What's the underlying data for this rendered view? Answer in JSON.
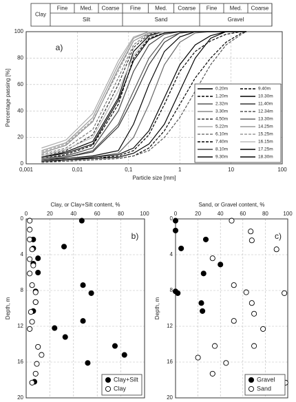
{
  "header": {
    "clay": "Clay",
    "groups": [
      {
        "name": "Silt",
        "parts": [
          "Fine",
          "Med.",
          "Coarse"
        ]
      },
      {
        "name": "Sand",
        "parts": [
          "Fine",
          "Med.",
          "Coarse"
        ]
      },
      {
        "name": "Gravel",
        "parts": [
          "Fine",
          "Med.",
          "Coarse"
        ]
      }
    ]
  },
  "chart_data": [
    {
      "type": "line",
      "panel_label": "a)",
      "xlabel": "Particle size [mm]",
      "ylabel": "Percentage passing [%]",
      "log_x": true,
      "grid": true,
      "x_axis_position": "bottom",
      "legend": "lower-right",
      "xlim": [
        0.001,
        100
      ],
      "xticks": [
        {
          "value": 0.001,
          "label": "0,001"
        },
        {
          "value": 0.01,
          "label": "0,01"
        },
        {
          "value": 0.1,
          "label": "0,1"
        },
        1,
        10,
        100
      ],
      "ylim": [
        0,
        100
      ],
      "yticks": [
        0,
        20,
        40,
        60,
        80,
        100
      ],
      "x": [
        0.002,
        0.006,
        0.02,
        0.063,
        0.125,
        0.25,
        0.5,
        1,
        2,
        4,
        8,
        16,
        20
      ],
      "series": [
        {
          "name": "0.20m",
          "color": "#000000",
          "style": "solid",
          "values": [
            5,
            9,
            17,
            50,
            85,
            97,
            100,
            100,
            100,
            100,
            100,
            100,
            100
          ]
        },
        {
          "name": "1.20m",
          "color": "#000000",
          "style": "dashed",
          "values": [
            4,
            7,
            14,
            45,
            80,
            95,
            99,
            100,
            100,
            100,
            100,
            100,
            100
          ]
        },
        {
          "name": "2.32m",
          "color": "#555555",
          "style": "solid",
          "values": [
            3,
            5,
            10,
            30,
            55,
            80,
            95,
            99,
            100,
            100,
            100,
            100,
            100
          ]
        },
        {
          "name": "3.30m",
          "color": "#888888",
          "style": "solid",
          "values": [
            8,
            14,
            32,
            72,
            93,
            99,
            100,
            100,
            100,
            100,
            100,
            100,
            100
          ]
        },
        {
          "name": "4.50m",
          "color": "#333333",
          "style": "dashed",
          "values": [
            6,
            10,
            22,
            60,
            88,
            98,
            100,
            100,
            100,
            100,
            100,
            100,
            100
          ]
        },
        {
          "name": "5.22m",
          "color": "#aaaaaa",
          "style": "solid",
          "values": [
            12,
            18,
            38,
            78,
            96,
            100,
            100,
            100,
            100,
            100,
            100,
            100,
            100
          ]
        },
        {
          "name": "6.10m",
          "color": "#777777",
          "style": "dashed",
          "values": [
            7,
            12,
            26,
            65,
            90,
            99,
            100,
            100,
            100,
            100,
            100,
            100,
            100
          ]
        },
        {
          "name": "7.40m",
          "color": "#000000",
          "style": "dashed",
          "values": [
            2,
            3,
            4,
            6,
            10,
            22,
            45,
            70,
            85,
            93,
            98,
            100,
            100
          ]
        },
        {
          "name": "8.10m",
          "color": "#444444",
          "style": "solid",
          "values": [
            4,
            6,
            12,
            40,
            70,
            90,
            98,
            100,
            100,
            100,
            100,
            100,
            100
          ]
        },
        {
          "name": "9.30m",
          "color": "#000000",
          "style": "solid",
          "values": [
            2,
            3,
            4,
            5,
            8,
            15,
            30,
            55,
            80,
            95,
            100,
            100,
            100
          ]
        },
        {
          "name": "9.40m",
          "color": "#000000",
          "style": "dashed",
          "values": [
            2,
            2,
            3,
            4,
            6,
            12,
            25,
            45,
            65,
            80,
            92,
            99,
            100
          ]
        },
        {
          "name": "10.30m",
          "color": "#000000",
          "style": "solid",
          "values": [
            3,
            4,
            6,
            10,
            30,
            60,
            85,
            96,
            100,
            100,
            100,
            100,
            100
          ]
        },
        {
          "name": "11.40m",
          "color": "#333333",
          "style": "solid",
          "values": [
            3,
            5,
            9,
            28,
            50,
            75,
            92,
            99,
            100,
            100,
            100,
            100,
            100
          ]
        },
        {
          "name": "12.34m",
          "color": "#555555",
          "style": "dashed",
          "values": [
            1,
            2,
            3,
            4,
            6,
            10,
            20,
            35,
            55,
            75,
            90,
            98,
            100
          ]
        },
        {
          "name": "13.30m",
          "color": "#666666",
          "style": "solid",
          "values": [
            2,
            3,
            5,
            8,
            20,
            45,
            75,
            92,
            99,
            100,
            100,
            100,
            100
          ]
        },
        {
          "name": "14.25m",
          "color": "#999999",
          "style": "solid",
          "values": [
            10,
            16,
            35,
            75,
            95,
            100,
            100,
            100,
            100,
            100,
            100,
            100,
            100
          ]
        },
        {
          "name": "15.25m",
          "color": "#999999",
          "style": "dashed",
          "values": [
            9,
            15,
            33,
            70,
            93,
            99,
            100,
            100,
            100,
            100,
            100,
            100,
            100
          ]
        },
        {
          "name": "16.15m",
          "color": "#bbbbbb",
          "style": "solid",
          "values": [
            6,
            11,
            20,
            55,
            82,
            96,
            100,
            100,
            100,
            100,
            100,
            100,
            100
          ]
        },
        {
          "name": "17.25m",
          "color": "#000000",
          "style": "solid",
          "values": [
            5,
            8,
            15,
            48,
            78,
            94,
            99,
            100,
            100,
            100,
            100,
            100,
            100
          ]
        },
        {
          "name": "18.30m",
          "color": "#000000",
          "style": "solid",
          "values": [
            2,
            3,
            5,
            7,
            12,
            25,
            50,
            75,
            90,
            97,
            100,
            100,
            100
          ]
        }
      ]
    },
    {
      "type": "scatter",
      "panel_label": "b)",
      "xlabel": "Clay, or Clay+Silt content, %",
      "ylabel": "Depth, m",
      "grid": true,
      "x_axis_position": "top",
      "y_inverted": true,
      "legend": "lower-right",
      "xlim": [
        0,
        100
      ],
      "xticks": [
        0,
        20,
        40,
        60,
        80,
        100
      ],
      "ylim": [
        0,
        20
      ],
      "yticks": [
        0,
        4,
        8,
        12,
        16,
        20
      ],
      "series": [
        {
          "name": "Clay+Silt",
          "color": "#000000",
          "marker": "filled",
          "x": [
            47,
            6,
            32,
            6,
            10,
            6,
            10,
            48,
            55,
            8,
            8,
            6,
            48,
            24,
            33,
            75,
            83,
            52,
            7
          ],
          "values": [
            0.2,
            2.3,
            3.1,
            3.3,
            4.4,
            5.0,
            6.0,
            7.4,
            8.3,
            8.1,
            9.3,
            10.3,
            11.4,
            12.2,
            13.2,
            14.2,
            15.2,
            16.1,
            18.2
          ]
        },
        {
          "name": "Clay",
          "color": "#000000",
          "marker": "open",
          "x": [
            3,
            3,
            3,
            5,
            3,
            6,
            3,
            5,
            8,
            8,
            4,
            5,
            3,
            10,
            13,
            9,
            8,
            5
          ],
          "values": [
            0.2,
            1.2,
            2.3,
            3.4,
            4.5,
            5.2,
            6.1,
            7.4,
            8.2,
            9.3,
            10.4,
            11.5,
            12.3,
            14.3,
            15.2,
            16.2,
            17.3,
            18.3
          ]
        }
      ]
    },
    {
      "type": "scatter",
      "panel_label": "c)",
      "xlabel": "Sand, or Gravel content, %",
      "ylabel": "Depth, m",
      "grid": true,
      "x_axis_position": "top",
      "y_inverted": true,
      "legend": "lower-right",
      "xlim": [
        0,
        100
      ],
      "xticks": [
        0,
        20,
        40,
        60,
        80,
        100
      ],
      "ylim": [
        0,
        20
      ],
      "yticks": [
        0,
        4,
        8,
        12,
        16,
        20
      ],
      "series": [
        {
          "name": "Gravel",
          "color": "#000000",
          "marker": "filled",
          "x": [
            0,
            0,
            27,
            5,
            40,
            25,
            0,
            2,
            23,
            24
          ],
          "values": [
            0.2,
            1.3,
            2.3,
            3.3,
            5.1,
            6.1,
            8.1,
            8.3,
            9.4,
            10.3
          ]
        },
        {
          "name": "Sand",
          "color": "#000000",
          "marker": "open",
          "x": [
            50,
            67,
            68,
            90,
            33,
            52,
            63,
            97,
            68,
            70,
            52,
            78,
            35,
            70,
            20,
            45,
            33,
            98
          ],
          "values": [
            0.2,
            1.4,
            2.4,
            3.4,
            4.4,
            7.4,
            8.2,
            8.3,
            9.4,
            10.6,
            11.4,
            12.3,
            14.2,
            14.2,
            15.5,
            16.1,
            17.3,
            18.3
          ]
        }
      ]
    }
  ]
}
